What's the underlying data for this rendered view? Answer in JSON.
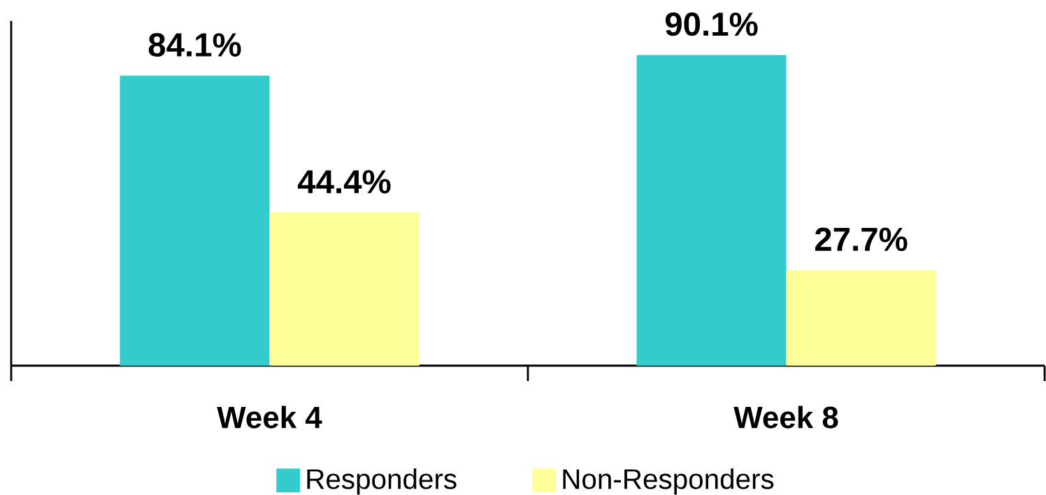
{
  "chart_data": {
    "type": "bar",
    "categories": [
      "Week 4",
      "Week 8"
    ],
    "series": [
      {
        "name": "Responders",
        "color": "#33cccc",
        "values": [
          84.1,
          90.1
        ],
        "value_labels": [
          "84.1%",
          "90.1%"
        ]
      },
      {
        "name": "Non-Responders",
        "color": "#ffff99",
        "values": [
          44.4,
          27.7
        ],
        "value_labels": [
          "44.4%",
          "27.7%"
        ]
      }
    ],
    "ylim": [
      0,
      100
    ],
    "tick_labels": "x",
    "legend": "bottom"
  }
}
